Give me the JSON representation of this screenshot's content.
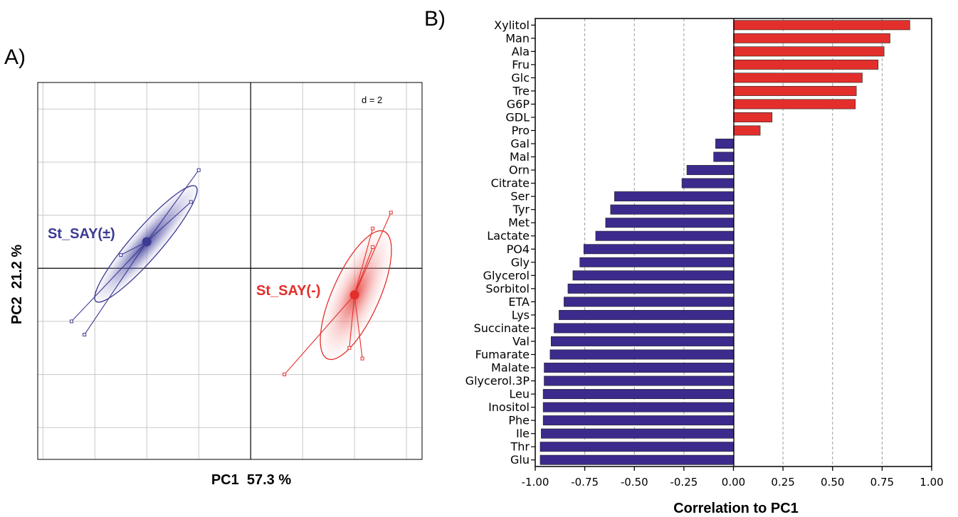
{
  "chart_data": [
    {
      "panel_label": "A)",
      "type": "scatter",
      "xlabel": "PC1  57.3 %",
      "ylabel": "PC2  21.2 %",
      "scale_note": "d = 2",
      "grid": true,
      "xlim": [
        -8.2,
        6.6
      ],
      "ylim": [
        -7.2,
        7.0
      ],
      "grid_step": 2,
      "colors": {
        "group_a": "#3c3a93",
        "group_b": "#e32f2b"
      },
      "groups": [
        {
          "name": "St_SAY(±)",
          "color": "#3c3a93",
          "centroid": [
            -4.0,
            1.0
          ],
          "points": [
            [
              -2.0,
              3.7
            ],
            [
              -2.3,
              2.5
            ],
            [
              -5.0,
              0.5
            ],
            [
              -6.9,
              -2.0
            ],
            [
              -6.4,
              -2.5
            ]
          ]
        },
        {
          "name": "St_SAY(-)",
          "color": "#e32f2b",
          "centroid": [
            4.0,
            -1.0
          ],
          "points": [
            [
              5.4,
              2.1
            ],
            [
              4.7,
              1.5
            ],
            [
              4.7,
              0.8
            ],
            [
              3.8,
              -3.0
            ],
            [
              4.3,
              -3.4
            ],
            [
              1.3,
              -4.0
            ]
          ]
        }
      ]
    },
    {
      "panel_label": "B)",
      "type": "bar",
      "orientation": "horizontal",
      "xlabel": "Correlation to PC1",
      "xlim": [
        -1.0,
        1.0
      ],
      "xticks": [
        "-1.00",
        "-0.75",
        "-0.50",
        "-0.25",
        "0.00",
        "0.25",
        "0.50",
        "0.75",
        "1.00"
      ],
      "grid": "vertical dashed",
      "colors": {
        "positive": "#e32f2b",
        "negative": "#3c2a8c"
      },
      "categories": [
        "Xylitol",
        "Man",
        "Ala",
        "Fru",
        "Glc",
        "Tre",
        "G6P",
        "GDL",
        "Pro",
        "Gal",
        "Mal",
        "Orn",
        "Citrate",
        "Ser",
        "Tyr",
        "Met",
        "Lactate",
        "PO4",
        "Gly",
        "Glycerol",
        "Sorbitol",
        "ETA",
        "Lys",
        "Succinate",
        "Val",
        "Fumarate",
        "Malate",
        "Glycerol.3P",
        "Leu",
        "Inositol",
        "Phe",
        "Ile",
        "Thr",
        "Glu"
      ],
      "values": [
        0.89,
        0.79,
        0.76,
        0.73,
        0.65,
        0.62,
        0.615,
        0.195,
        0.135,
        -0.09,
        -0.1,
        -0.235,
        -0.26,
        -0.6,
        -0.62,
        -0.645,
        -0.695,
        -0.755,
        -0.775,
        -0.81,
        -0.835,
        -0.855,
        -0.88,
        -0.905,
        -0.92,
        -0.925,
        -0.955,
        -0.955,
        -0.96,
        -0.96,
        -0.96,
        -0.97,
        -0.975,
        -0.975
      ]
    }
  ]
}
